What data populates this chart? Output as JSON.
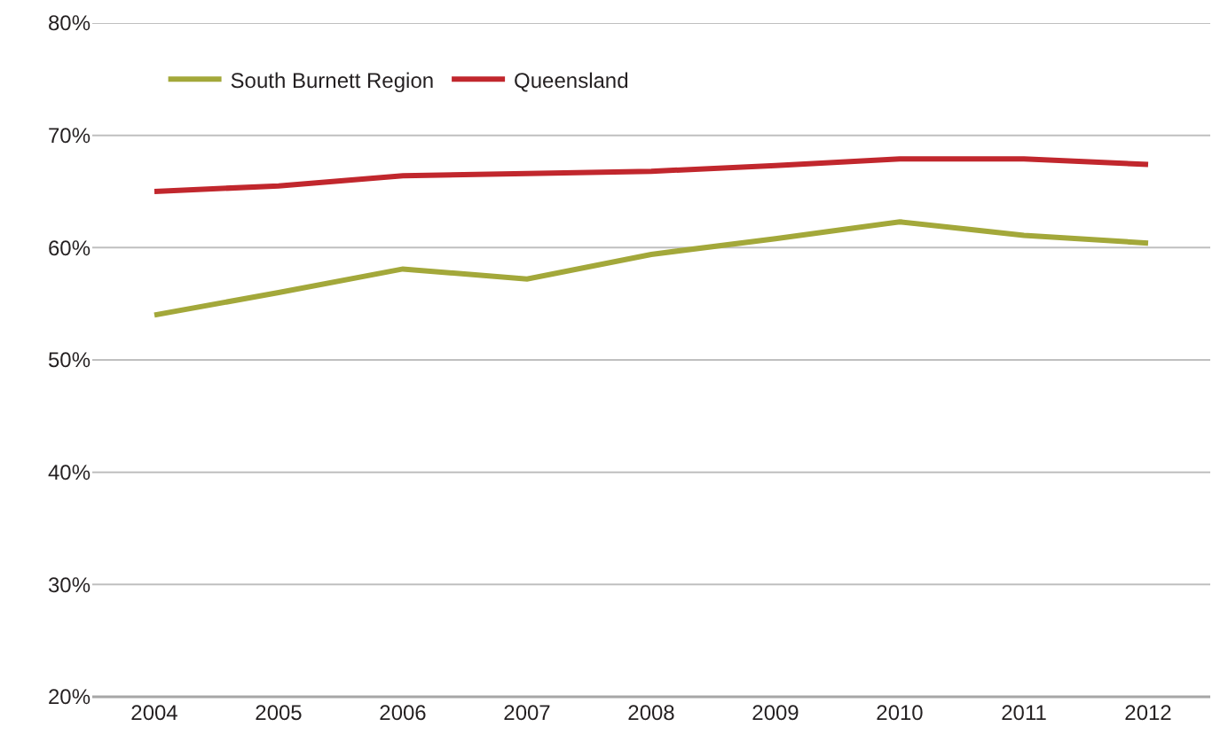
{
  "chart_data": {
    "type": "line",
    "categories": [
      "2004",
      "2005",
      "2006",
      "2007",
      "2008",
      "2009",
      "2010",
      "2011",
      "2012"
    ],
    "series": [
      {
        "name": "South Burnett Region",
        "color": "#a3a83a",
        "values": [
          54.0,
          56.0,
          58.1,
          57.2,
          59.4,
          60.8,
          62.3,
          61.1,
          60.4
        ]
      },
      {
        "name": "Queensland",
        "color": "#c1272d",
        "values": [
          65.0,
          65.5,
          66.4,
          66.6,
          66.8,
          67.3,
          67.9,
          67.9,
          67.4
        ]
      }
    ],
    "ylim": [
      20,
      80
    ],
    "yticks": [
      {
        "value": 20,
        "label": "20%"
      },
      {
        "value": 30,
        "label": "30%"
      },
      {
        "value": 40,
        "label": "40%"
      },
      {
        "value": 50,
        "label": "50%"
      },
      {
        "value": 60,
        "label": "60%"
      },
      {
        "value": 70,
        "label": "70%"
      },
      {
        "value": 80,
        "label": "80%"
      }
    ],
    "grid": "y",
    "legend": "top left",
    "marker": "none",
    "line_style": "solid"
  }
}
